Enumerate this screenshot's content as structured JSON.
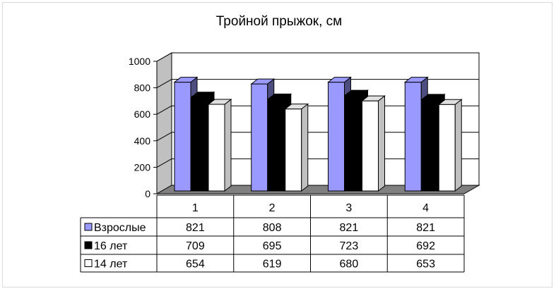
{
  "chart_data": {
    "type": "bar",
    "title": "Тройной прыжок, см",
    "categories": [
      "1",
      "2",
      "3",
      "4"
    ],
    "series": [
      {
        "name": "Взрослые",
        "values": [
          821,
          808,
          821,
          821
        ],
        "color": "#9999FF"
      },
      {
        "name": "16 лет",
        "values": [
          709,
          695,
          723,
          692
        ],
        "color": "#000000"
      },
      {
        "name": "14 лет",
        "values": [
          654,
          619,
          680,
          653
        ],
        "color": "#FFFFFF"
      }
    ],
    "y_ticks": [
      "0",
      "200",
      "400",
      "600",
      "800",
      "1000"
    ],
    "ylim": [
      0,
      1000
    ],
    "grid": true,
    "three_d": true,
    "legend": "data-table",
    "colors": {
      "floor": "#808080",
      "back_wall": "#FFFFFF",
      "side_wall": "#C0C0C0",
      "gridline": "#000000",
      "frame": "#D9D9D9"
    }
  }
}
